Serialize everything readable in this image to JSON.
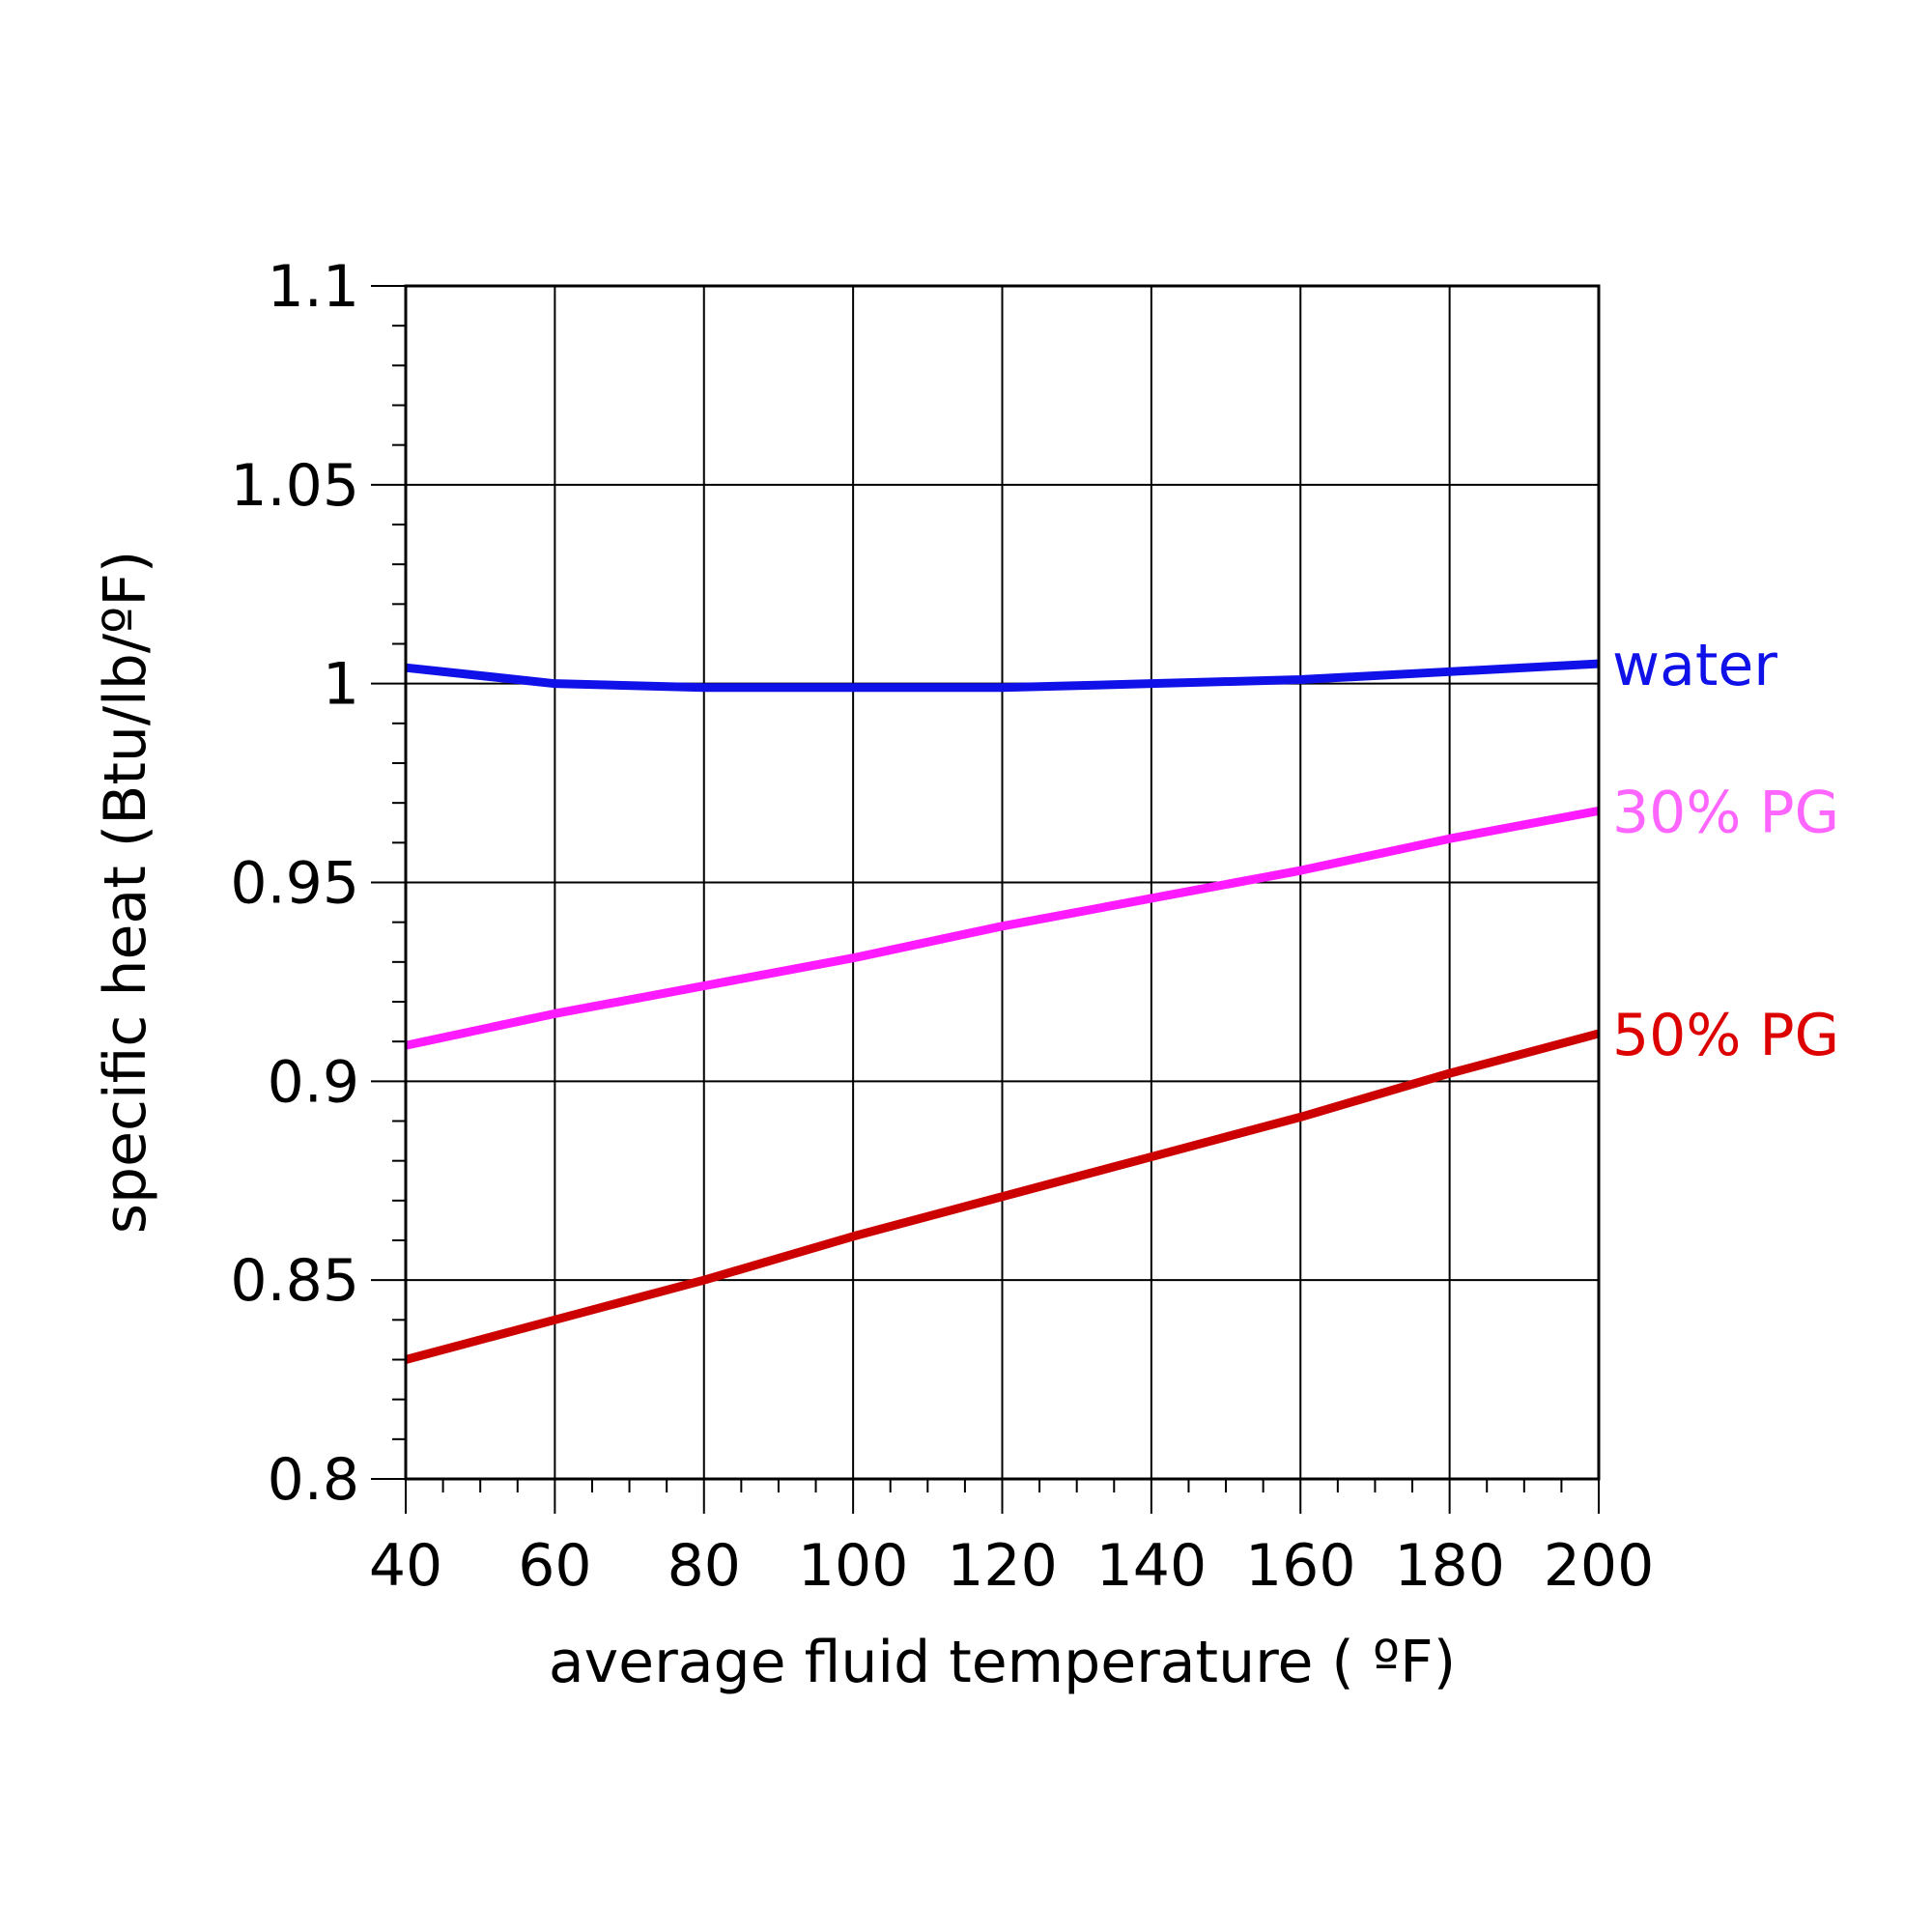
{
  "chart_data": {
    "type": "line",
    "title": "",
    "xlabel": "average fluid temperature ( ºF)",
    "ylabel": "specific heat (Btu/lb/ºF)",
    "xlim": [
      40,
      200
    ],
    "ylim": [
      0.8,
      1.1
    ],
    "x_ticks": [
      40,
      60,
      80,
      100,
      120,
      140,
      160,
      180,
      200
    ],
    "x_tick_labels": [
      "40",
      "60",
      "80",
      "100",
      "120",
      "140",
      "160",
      "180",
      "200"
    ],
    "y_ticks": [
      0.8,
      0.85,
      0.9,
      0.95,
      1.0,
      1.05,
      1.1
    ],
    "y_tick_labels": [
      "0.8",
      "0.85",
      "0.9",
      "0.95",
      "1",
      "1.05",
      "1.1"
    ],
    "y_minor_step": 0.01,
    "x_minor_step": 5,
    "grid": true,
    "legend": "labels at right end of each line",
    "x": [
      40,
      60,
      80,
      100,
      120,
      140,
      160,
      180,
      200
    ],
    "series": [
      {
        "name": "water",
        "color": "#1010e8",
        "values": [
          1.004,
          1.0,
          0.999,
          0.999,
          0.999,
          1.0,
          1.001,
          1.003,
          1.005
        ]
      },
      {
        "name": "30% PG",
        "color": "#ff1aff",
        "label_color": "#ff66ff",
        "values": [
          0.909,
          0.917,
          0.924,
          0.931,
          0.939,
          0.946,
          0.953,
          0.961,
          0.968
        ]
      },
      {
        "name": "50% PG",
        "color": "#cc0000",
        "label_color": "#dd0000",
        "values": [
          0.83,
          0.84,
          0.85,
          0.861,
          0.871,
          0.881,
          0.891,
          0.902,
          0.912
        ]
      }
    ]
  }
}
